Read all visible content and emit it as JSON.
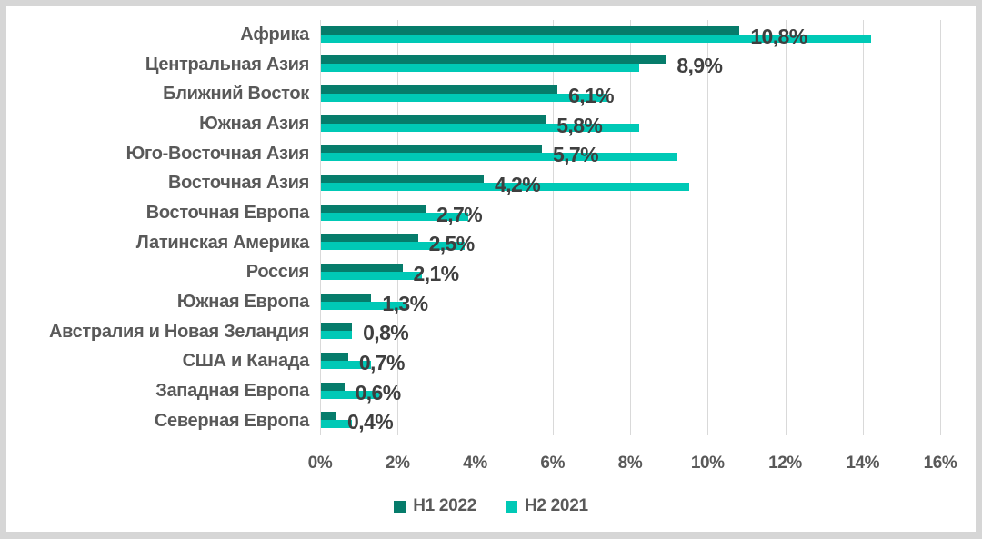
{
  "chart_data": {
    "type": "bar",
    "orientation": "horizontal",
    "title": "",
    "xlabel": "",
    "ylabel": "",
    "xlim": [
      0,
      16
    ],
    "x_ticks": [
      "0%",
      "2%",
      "4%",
      "6%",
      "8%",
      "10%",
      "12%",
      "14%",
      "16%"
    ],
    "grid": true,
    "legend_position": "bottom",
    "categories": [
      "Африка",
      "Центральная Азия",
      "Ближний Восток",
      "Южная Азия",
      "Юго-Восточная Азия",
      "Восточная Азия",
      "Восточная Европа",
      "Латинская Америка",
      "Россия",
      "Южная Европа",
      "Австралия и Новая Зеландия",
      "США и Канада",
      "Западная Европа",
      "Северная Европа"
    ],
    "series": [
      {
        "name": "H1 2022",
        "color": "#067c6b",
        "values": [
          10.8,
          8.9,
          6.1,
          5.8,
          5.7,
          4.2,
          2.7,
          2.5,
          2.1,
          1.3,
          0.8,
          0.7,
          0.6,
          0.4
        ],
        "data_labels": [
          "10,8%",
          "8,9%",
          "6,1%",
          "5,8%",
          "5,7%",
          "4,2%",
          "2,7%",
          "2,5%",
          "2,1%",
          "1,3%",
          "0,8%",
          "0,7%",
          "0,6%",
          "0,4%"
        ]
      },
      {
        "name": "H2 2021",
        "color": "#00c9b6",
        "values": [
          14.2,
          8.2,
          7.4,
          8.2,
          9.2,
          9.5,
          3.8,
          3.7,
          2.6,
          2.2,
          0.8,
          1.3,
          1.5,
          0.8
        ]
      }
    ]
  },
  "colors": {
    "frame": "#d6d6d6",
    "chart_background": "#ffffff",
    "gridline": "#d9d9d9",
    "axis_text": "#595959",
    "category_text": "#595959",
    "data_label_text": "#3f3f3f",
    "h1_2022": "#067c6b",
    "h2_2021": "#00c9b6"
  }
}
